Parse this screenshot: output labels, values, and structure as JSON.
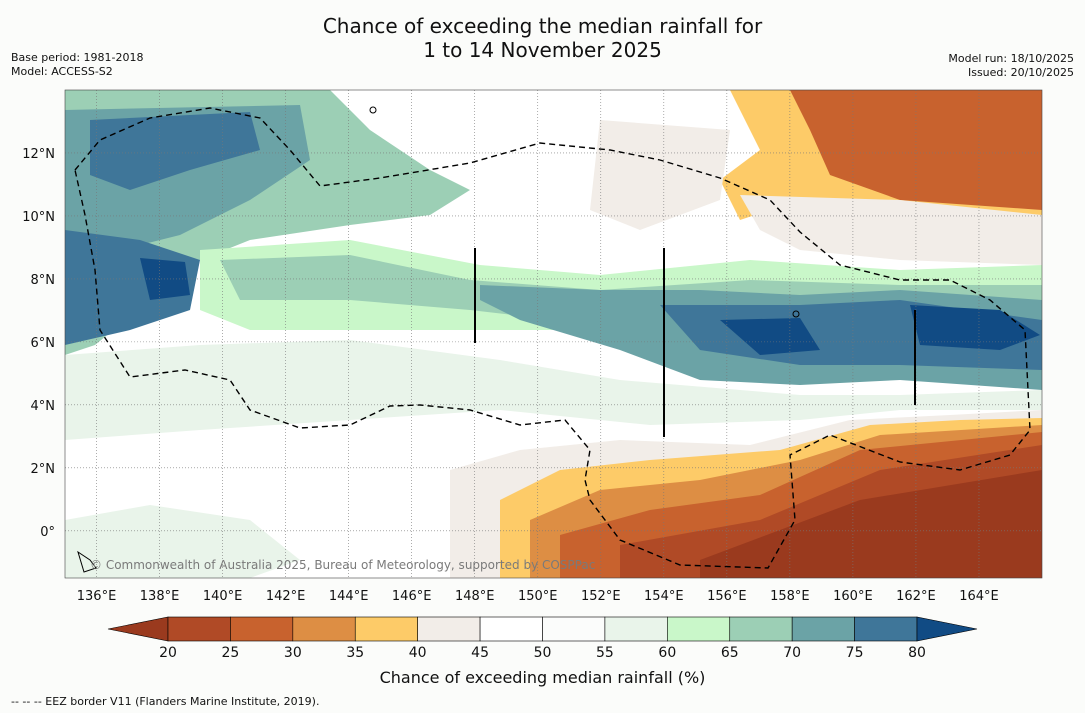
{
  "title": {
    "line1": "Chance of exceeding the median rainfall for",
    "line2": "1 to 14 November 2025"
  },
  "meta": {
    "base_period": "Base period: 1981-2018",
    "model": "Model: ACCESS-S2",
    "model_run": "Model run: 18/10/2025",
    "issued": "Issued: 20/10/2025"
  },
  "map": {
    "lon_range": [
      135,
      166
    ],
    "lat_range": [
      -1.5,
      14
    ],
    "lon_ticks": [
      "136°E",
      "138°E",
      "140°E",
      "142°E",
      "144°E",
      "146°E",
      "148°E",
      "150°E",
      "152°E",
      "154°E",
      "156°E",
      "158°E",
      "160°E",
      "162°E",
      "164°E"
    ],
    "lon_values": [
      136,
      138,
      140,
      142,
      144,
      146,
      148,
      150,
      152,
      154,
      156,
      158,
      160,
      162,
      164
    ],
    "lat_ticks": [
      "12°N",
      "10°N",
      "8°N",
      "6°N",
      "4°N",
      "2°N",
      "0°"
    ],
    "lat_values": [
      12,
      10,
      8,
      6,
      4,
      2,
      0
    ],
    "copyright": "© Commonwealth of Australia 2025, Bureau of Meteorology, supported by COSPPac"
  },
  "colorbar": {
    "ticks": [
      "20",
      "25",
      "30",
      "35",
      "40",
      "45",
      "50",
      "55",
      "60",
      "65",
      "70",
      "75",
      "80"
    ],
    "colors": [
      "#9a3a1e",
      "#b04a26",
      "#c8622e",
      "#dd8e44",
      "#fdcb68",
      "#f2ede8",
      "#ffffff",
      "#fbfcfb",
      "#e9f4ea",
      "#c9f7c9",
      "#9ccfb5",
      "#6ba3a6",
      "#3f7699",
      "#114b84"
    ],
    "label": "Chance of exceeding median rainfall (%)"
  },
  "footnote": "--  --  -- EEZ border V11 (Flanders Marine Institute, 2019)."
}
